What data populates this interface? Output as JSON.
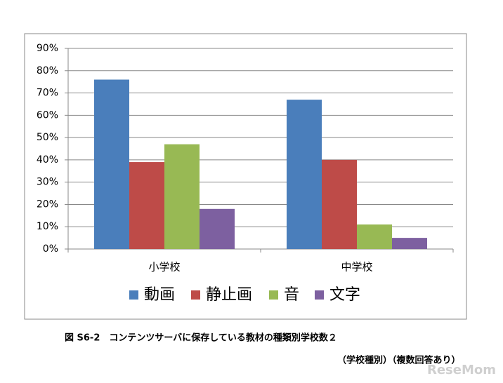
{
  "chart_data": {
    "type": "bar",
    "categories": [
      "小学校",
      "中学校"
    ],
    "series": [
      {
        "name": "動画",
        "color": "#4a7ebb",
        "values": [
          76,
          67
        ]
      },
      {
        "name": "静止画",
        "color": "#be4b48",
        "values": [
          39,
          40
        ]
      },
      {
        "name": "音",
        "color": "#98b954",
        "values": [
          47,
          11
        ]
      },
      {
        "name": "文字",
        "color": "#7d60a0",
        "values": [
          18,
          5
        ]
      }
    ],
    "ylim": [
      0,
      90
    ],
    "yticks": [
      {
        "value": 0,
        "label": "0%"
      },
      {
        "value": 10,
        "label": "10%"
      },
      {
        "value": 20,
        "label": "20%"
      },
      {
        "value": 30,
        "label": "30%"
      },
      {
        "value": 40,
        "label": "40%"
      },
      {
        "value": 50,
        "label": "50%"
      },
      {
        "value": 60,
        "label": "60%"
      },
      {
        "value": 70,
        "label": "70%"
      },
      {
        "value": 80,
        "label": "80%"
      },
      {
        "value": 90,
        "label": "90%"
      }
    ],
    "grid": true,
    "legend": "bottom",
    "caption": "図 S6-2　コンテンツサーバに保存している教材の種類別学校数２",
    "subcaption": "（学校種別）（複数回答あり）",
    "watermark": "ReseMom"
  }
}
